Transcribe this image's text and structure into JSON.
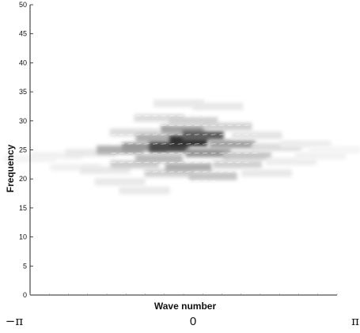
{
  "chart_data": {
    "type": "heatmap",
    "title": "",
    "xlabel": "Wave number",
    "ylabel": "Frequency",
    "x_tick_labels": [
      "−π",
      "0",
      "π"
    ],
    "x_range": [
      -3.14159,
      3.14159
    ],
    "ylim": [
      0,
      50
    ],
    "y_ticks": [
      0,
      5,
      10,
      15,
      20,
      25,
      30,
      35,
      40,
      45,
      50
    ],
    "grid": false,
    "legend": "none",
    "colormap": {
      "low": "#ffffff",
      "high": "#1a1a1a"
    },
    "cells": [
      {
        "x": -3.14,
        "y": 23.5,
        "v": 0.05
      },
      {
        "x": -2.6,
        "y": 24.0,
        "v": 0.06
      },
      {
        "x": -2.2,
        "y": 22.0,
        "v": 0.06
      },
      {
        "x": -1.9,
        "y": 24.5,
        "v": 0.1
      },
      {
        "x": -1.6,
        "y": 21.5,
        "v": 0.1
      },
      {
        "x": -1.3,
        "y": 25.0,
        "v": 0.35
      },
      {
        "x": -1.3,
        "y": 19.5,
        "v": 0.1
      },
      {
        "x": -1.0,
        "y": 28.0,
        "v": 0.15
      },
      {
        "x": -1.0,
        "y": 22.5,
        "v": 0.22
      },
      {
        "x": -0.8,
        "y": 25.5,
        "v": 0.45
      },
      {
        "x": -0.8,
        "y": 18.0,
        "v": 0.1
      },
      {
        "x": -0.5,
        "y": 30.5,
        "v": 0.15
      },
      {
        "x": -0.5,
        "y": 27.0,
        "v": 0.35
      },
      {
        "x": -0.5,
        "y": 23.5,
        "v": 0.3
      },
      {
        "x": -0.3,
        "y": 25.5,
        "v": 0.8
      },
      {
        "x": -0.3,
        "y": 21.0,
        "v": 0.2
      },
      {
        "x": -0.1,
        "y": 33.0,
        "v": 0.1
      },
      {
        "x": 0.0,
        "y": 28.5,
        "v": 0.4
      },
      {
        "x": 0.1,
        "y": 26.5,
        "v": 0.9
      },
      {
        "x": 0.1,
        "y": 22.0,
        "v": 0.35
      },
      {
        "x": 0.2,
        "y": 30.0,
        "v": 0.2
      },
      {
        "x": 0.4,
        "y": 27.5,
        "v": 0.7
      },
      {
        "x": 0.5,
        "y": 24.5,
        "v": 0.45
      },
      {
        "x": 0.6,
        "y": 20.5,
        "v": 0.25
      },
      {
        "x": 0.7,
        "y": 32.5,
        "v": 0.1
      },
      {
        "x": 0.9,
        "y": 29.0,
        "v": 0.2
      },
      {
        "x": 1.0,
        "y": 26.0,
        "v": 0.4
      },
      {
        "x": 1.1,
        "y": 22.5,
        "v": 0.2
      },
      {
        "x": 1.3,
        "y": 24.0,
        "v": 0.25
      },
      {
        "x": 1.5,
        "y": 27.5,
        "v": 0.12
      },
      {
        "x": 1.7,
        "y": 21.0,
        "v": 0.1
      },
      {
        "x": 1.9,
        "y": 25.5,
        "v": 0.15
      },
      {
        "x": 2.2,
        "y": 23.0,
        "v": 0.08
      },
      {
        "x": 2.5,
        "y": 26.0,
        "v": 0.08
      },
      {
        "x": 2.8,
        "y": 24.0,
        "v": 0.06
      },
      {
        "x": 3.1,
        "y": 25.0,
        "v": 0.05
      }
    ]
  }
}
